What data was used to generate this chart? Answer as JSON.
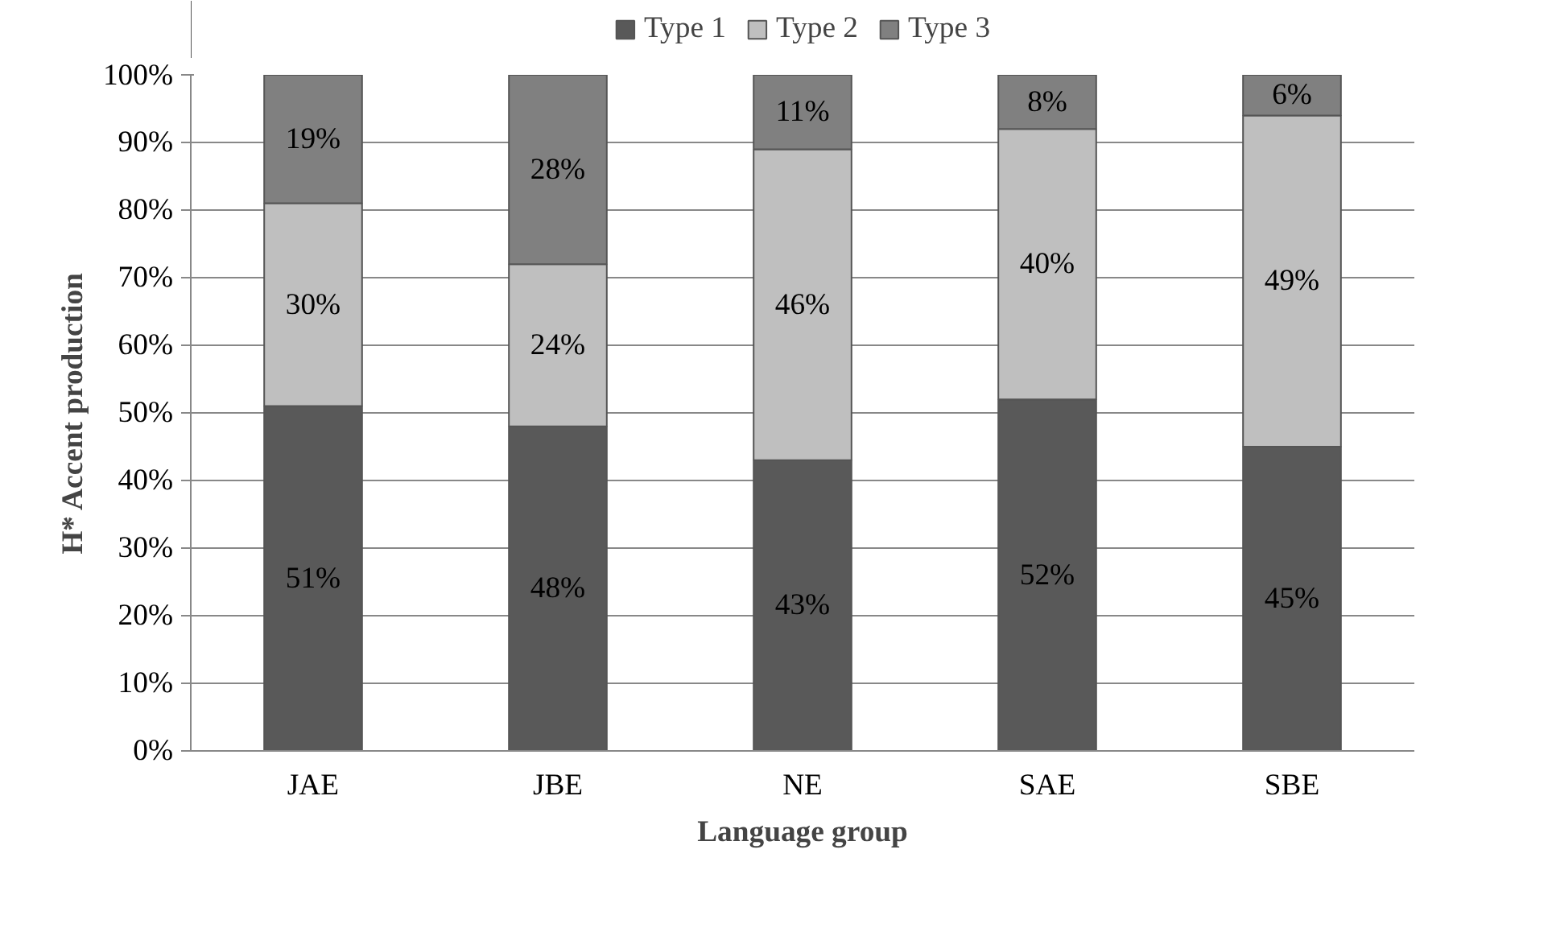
{
  "chart_data": {
    "type": "bar",
    "stacked": true,
    "xlabel": "Language group",
    "ylabel": "H* Accent production",
    "categories": [
      "JAE",
      "JBE",
      "NE",
      "SAE",
      "SBE"
    ],
    "series": [
      {
        "name": "Type 1",
        "color": "#595959",
        "values": [
          51,
          48,
          43,
          52,
          45
        ],
        "value_labels": [
          "51%",
          "48%",
          "43%",
          "52%",
          "45%"
        ]
      },
      {
        "name": "Type 2",
        "color": "#bfbfbf",
        "values": [
          30,
          24,
          46,
          40,
          49
        ],
        "value_labels": [
          "30%",
          "24%",
          "46%",
          "40%",
          "49%"
        ]
      },
      {
        "name": "Type 3",
        "color": "#808080",
        "values": [
          19,
          28,
          11,
          8,
          6
        ],
        "value_labels": [
          "19%",
          "28%",
          "11%",
          "8%",
          "6%"
        ]
      }
    ],
    "ylim": [
      0,
      100
    ],
    "yticks": [
      {
        "value": 0,
        "label": "0%"
      },
      {
        "value": 10,
        "label": "10%"
      },
      {
        "value": 20,
        "label": "20%"
      },
      {
        "value": 30,
        "label": "30%"
      },
      {
        "value": 40,
        "label": "40%"
      },
      {
        "value": 50,
        "label": "50%"
      },
      {
        "value": 60,
        "label": "60%"
      },
      {
        "value": 70,
        "label": "70%"
      },
      {
        "value": 80,
        "label": "80%"
      },
      {
        "value": 90,
        "label": "90%"
      },
      {
        "value": 100,
        "label": "100%"
      }
    ],
    "grid": "y",
    "legend": "top"
  }
}
